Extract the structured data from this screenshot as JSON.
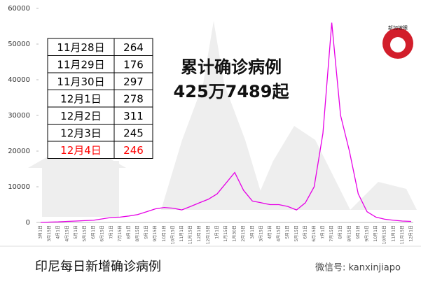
{
  "chart_data": {
    "type": "line",
    "series": [
      {
        "name": null,
        "color": "#e600e6",
        "values": [
          0,
          100,
          150,
          300,
          400,
          500,
          600,
          1000,
          1400,
          1500,
          1800,
          2200,
          3000,
          3800,
          4200,
          4000,
          3500,
          4500,
          5500,
          6500,
          8000,
          11000,
          14000,
          9000,
          6000,
          5500,
          5000,
          5000,
          4500,
          3500,
          5500,
          10000,
          25000,
          56000,
          30000,
          20000,
          8000,
          3000,
          1500,
          900,
          600,
          400,
          300
        ]
      }
    ],
    "categories": [
      "3月1日",
      "3月15日",
      "4月1日",
      "4月15日",
      "5月1日",
      "5月15日",
      "6月1日",
      "6月15日",
      "7月1日",
      "7月15日",
      "8月1日",
      "8月15日",
      "9月1日",
      "9月15日",
      "10月1日",
      "10月15日",
      "11月1日",
      "11月15日",
      "12月1日",
      "12月15日",
      "1月1日",
      "1月15日",
      "1月30日",
      "2月15日",
      "3月1日",
      "3月15日",
      "4月1日",
      "4月15日",
      "5月1日",
      "5月15日",
      "6月1日",
      "6月15日",
      "7月1日",
      "7月15日",
      "8月1日",
      "8月15日",
      "9月1日",
      "9月15日",
      "10月1日",
      "10月15日",
      "11月1日",
      "11月15日",
      "12月1日"
    ],
    "ylim": [
      0,
      60000
    ],
    "yticks": [
      0,
      10000,
      20000,
      30000,
      40000,
      50000,
      60000
    ]
  },
  "table": {
    "rows": [
      [
        "11月28日",
        "264"
      ],
      [
        "11月29日",
        "176"
      ],
      [
        "11月30日",
        "297"
      ],
      [
        "12月1日",
        "278"
      ],
      [
        "12月2日",
        "311"
      ],
      [
        "12月3日",
        "245"
      ],
      [
        "12月4日",
        "246"
      ]
    ],
    "highlight_row": 6,
    "highlight_color": "#ff0000"
  },
  "headline": [
    "累计确诊病例",
    "425万7489起"
  ],
  "caption": "印尼每日新增确诊病例",
  "watermark": "微信号: kanxinjiapo",
  "logo": "新加坡眼"
}
